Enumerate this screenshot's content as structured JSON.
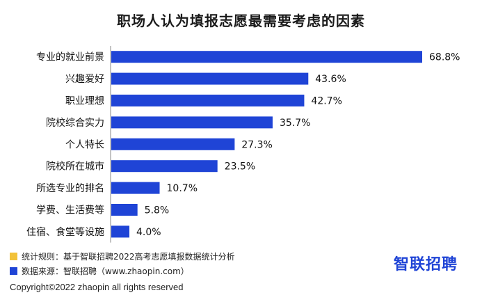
{
  "chart_data": {
    "type": "bar",
    "orientation": "horizontal",
    "title": "职场人认为填报志愿最需要考虑的因素",
    "categories": [
      "专业的就业前景",
      "兴趣爱好",
      "职业理想",
      "院校综合实力",
      "个人特长",
      "院校所在城市",
      "所选专业的排名",
      "学费、生活费等",
      "住宿、食堂等设施"
    ],
    "values": [
      68.8,
      43.6,
      42.7,
      35.7,
      27.3,
      23.5,
      10.7,
      5.8,
      4.0
    ],
    "value_labels": [
      "68.8%",
      "43.6%",
      "42.7%",
      "35.7%",
      "27.3%",
      "23.5%",
      "10.7%",
      "5.8%",
      "4.0%"
    ],
    "xlim": [
      0,
      68.8
    ],
    "grid": false,
    "bar_color": "#1f44d6",
    "axis_color": "#888888"
  },
  "legend": [
    {
      "text": "统计规则：基于智联招聘2022高考志愿填报数据统计分析",
      "color": "#f2c23a"
    },
    {
      "text": "数据来源：智联招聘（www.zhaopin.com）",
      "color": "#1f44d6"
    }
  ],
  "logo_text": "智联招聘",
  "copyright": "Copyright©2022 zhaopin all rights reserved"
}
